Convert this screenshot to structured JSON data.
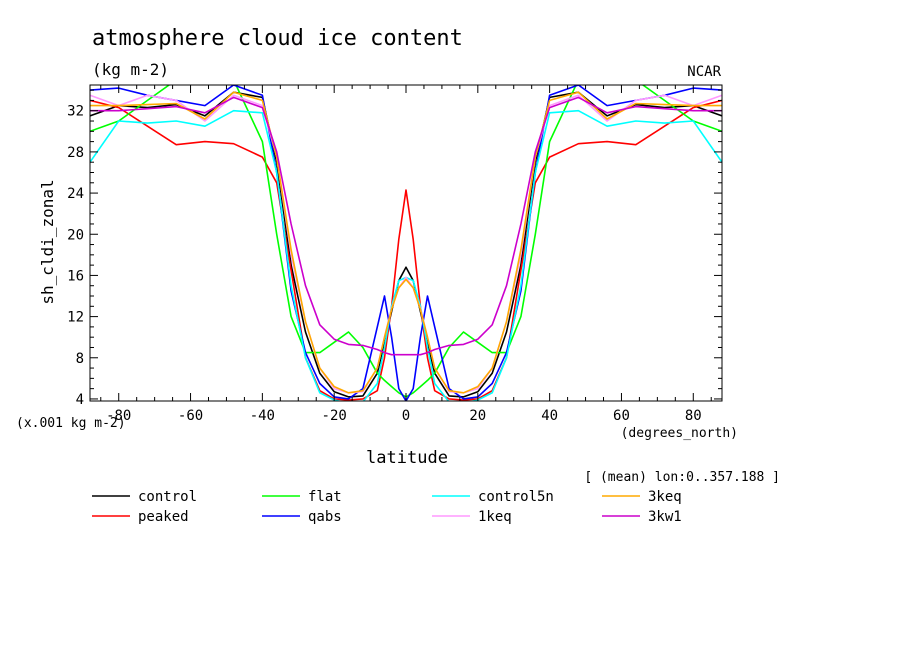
{
  "chart_data": {
    "type": "line",
    "title": "atmosphere cloud ice content",
    "units_label": "(kg m-2)",
    "source_label": "NCAR",
    "ylabel": "sh_cldi_zonal",
    "scale_label": "(x.001 kg m-2)",
    "xlabel": "latitude",
    "x_units_label": "(degrees_north)",
    "subset_label": "[ (mean) lon:0..357.188 ]",
    "xlim": [
      -88,
      88
    ],
    "ylim": [
      3.8,
      34.5
    ],
    "x_ticks": [
      -80,
      -60,
      -40,
      -20,
      0,
      20,
      40,
      60,
      80
    ],
    "y_ticks": [
      4,
      8,
      12,
      16,
      20,
      24,
      28,
      32
    ],
    "grid": false,
    "legend_position": "bottom",
    "x": [
      -88,
      -80,
      -72,
      -64,
      -56,
      -48,
      -40,
      -36,
      -32,
      -28,
      -24,
      -20,
      -16,
      -12,
      -8,
      -6,
      -4,
      -2,
      0,
      2,
      4,
      6,
      8,
      12,
      16,
      20,
      24,
      28,
      32,
      36,
      40,
      48,
      56,
      64,
      72,
      80,
      88
    ],
    "series": [
      {
        "name": "control",
        "color": "#000000",
        "values": [
          31.5,
          32.5,
          32.3,
          32.6,
          31.5,
          33.8,
          33.3,
          27,
          17,
          10.5,
          6.5,
          4.7,
          4.2,
          4.3,
          6.5,
          9.5,
          12.5,
          15.5,
          16.8,
          15.5,
          12.5,
          9.5,
          6.5,
          4.3,
          4.2,
          4.7,
          6.5,
          10.5,
          17,
          27,
          33.3,
          33.8,
          31.5,
          32.6,
          32.3,
          32.5,
          31.5
        ]
      },
      {
        "name": "peaked",
        "color": "#ff0000",
        "values": [
          33,
          32.3,
          30.5,
          28.7,
          29,
          28.8,
          27.5,
          25,
          16.5,
          8,
          4.8,
          4,
          3.9,
          4,
          4.8,
          8,
          13,
          19.5,
          24.3,
          19.5,
          13,
          8,
          4.8,
          4,
          3.9,
          4,
          4.8,
          8,
          16.5,
          25,
          27.5,
          28.8,
          29,
          28.7,
          30.5,
          32.3,
          33
        ]
      },
      {
        "name": "flat",
        "color": "#00ff00",
        "values": [
          30,
          31,
          33,
          35,
          36.8,
          35,
          29,
          20,
          12,
          8.5,
          8.5,
          9.5,
          10.5,
          9,
          6.5,
          5.8,
          5.2,
          4.6,
          4.2,
          4.6,
          5.2,
          5.8,
          6.5,
          9,
          10.5,
          9.5,
          8.5,
          8.5,
          12,
          20,
          29,
          35,
          36.8,
          35,
          33,
          31,
          30
        ]
      },
      {
        "name": "qabs",
        "color": "#0000ff",
        "values": [
          34,
          34.2,
          33.5,
          33,
          32.5,
          34.5,
          33.5,
          26,
          14.5,
          8.5,
          5.5,
          4.2,
          4,
          5,
          11,
          14,
          10,
          5,
          3.8,
          5,
          10,
          14,
          11,
          5,
          4,
          4.2,
          5.5,
          8.5,
          14.5,
          26,
          33.5,
          34.5,
          32.5,
          33,
          33.5,
          34.2,
          34
        ]
      },
      {
        "name": "control5n",
        "color": "#00ffff",
        "values": [
          27,
          31,
          30.8,
          31,
          30.5,
          32,
          31.8,
          26,
          15,
          8,
          4.6,
          3.9,
          3.6,
          3.7,
          5.5,
          9,
          13,
          15.5,
          15.8,
          15.5,
          13,
          9,
          5.5,
          3.7,
          3.6,
          3.9,
          4.6,
          8,
          15,
          26,
          31.8,
          32,
          30.5,
          31,
          30.8,
          31,
          27
        ]
      },
      {
        "name": "1keq",
        "color": "#ff99ff",
        "values": [
          33.5,
          32.5,
          33.5,
          33,
          31,
          33.5,
          32.5,
          27.5,
          18,
          11.5,
          7,
          5,
          4.6,
          4.7,
          7,
          10,
          12.8,
          14.8,
          15.8,
          14.8,
          12.8,
          10,
          7,
          4.7,
          4.6,
          5,
          7,
          11.5,
          18,
          27.5,
          32.5,
          33.5,
          31,
          33,
          33.5,
          32.5,
          33.5
        ]
      },
      {
        "name": "3keq",
        "color": "#ffaa00",
        "values": [
          32.5,
          32.5,
          32.6,
          32.7,
          31.2,
          33.8,
          33,
          27.5,
          18.5,
          11.5,
          7,
          5.2,
          4.6,
          4.8,
          7,
          10,
          12.7,
          14.8,
          15.6,
          14.8,
          12.7,
          10,
          7,
          4.8,
          4.6,
          5.2,
          7,
          11.5,
          18.5,
          27.5,
          33,
          33.8,
          31.2,
          32.7,
          32.6,
          32.5,
          32.5
        ]
      },
      {
        "name": "3kw1",
        "color": "#cc00cc",
        "values": [
          32,
          32,
          32.2,
          32.4,
          31.8,
          33.3,
          32.3,
          28,
          21,
          15,
          11.2,
          9.8,
          9.3,
          9.2,
          8.8,
          8.5,
          8.3,
          8.3,
          8.3,
          8.3,
          8.3,
          8.5,
          8.8,
          9.2,
          9.3,
          9.8,
          11.2,
          15,
          21,
          28,
          32.3,
          33.3,
          31.8,
          32.4,
          32.2,
          32,
          32
        ]
      }
    ]
  }
}
